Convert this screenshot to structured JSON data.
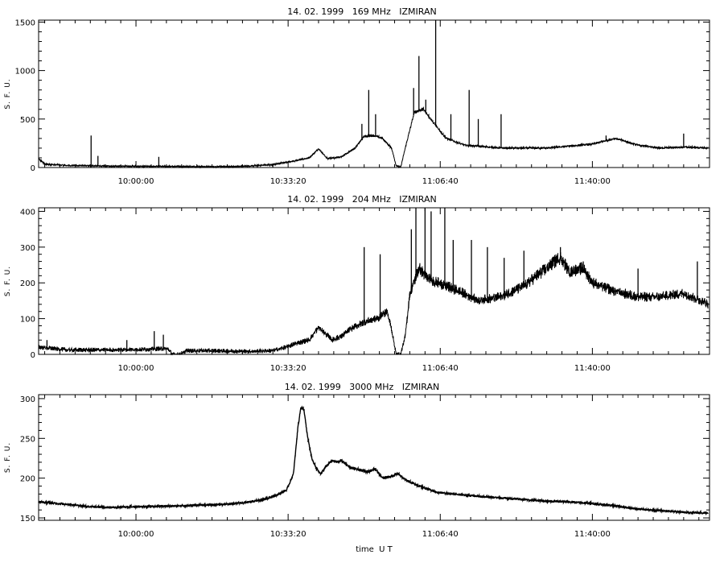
{
  "chart_data": [
    {
      "type": "line",
      "title": "14. 02. 1999   169 MHz   IZMIRAN",
      "ylabel": "S. F. U.",
      "xlabel": "",
      "x_tick_labels": [
        "10:00:00",
        "10:33:20",
        "11:06:40",
        "11:40:00"
      ],
      "x_ticks_seconds": [
        36000,
        38000,
        40000,
        42000
      ],
      "xlim_seconds": [
        34720,
        43540
      ],
      "ylim": [
        0,
        1520
      ],
      "y_tick_labels": [
        "0",
        "500",
        "1000",
        "1500"
      ],
      "y_ticks": [
        0,
        500,
        1000,
        1500
      ],
      "noise": 30,
      "series": [
        {
          "points": [
            [
              "09:38:40",
              90
            ],
            [
              "09:40:00",
              35
            ],
            [
              "09:45:00",
              20
            ],
            [
              "09:50:00",
              18
            ],
            [
              "09:52:00",
              15
            ],
            [
              "10:00:00",
              12
            ],
            [
              "10:10:00",
              10
            ],
            [
              "10:20:00",
              8
            ],
            [
              "10:25:00",
              15
            ],
            [
              "10:30:00",
              30
            ],
            [
              "10:35:00",
              70
            ],
            [
              "10:38:00",
              100
            ],
            [
              "10:40:00",
              190
            ],
            [
              "10:42:00",
              90
            ],
            [
              "10:45:00",
              110
            ],
            [
              "10:48:00",
              200
            ],
            [
              "10:50:00",
              320
            ],
            [
              "10:52:00",
              330
            ],
            [
              "10:54:00",
              300
            ],
            [
              "10:56:00",
              200
            ],
            [
              "10:57:00",
              20
            ],
            [
              "10:58:00",
              0
            ],
            [
              "10:59:00",
              200
            ],
            [
              "11:01:00",
              570
            ],
            [
              "11:03:00",
              600
            ],
            [
              "11:05:00",
              470
            ],
            [
              "11:08:00",
              300
            ],
            [
              "11:12:00",
              230
            ],
            [
              "11:20:00",
              200
            ],
            [
              "11:30:00",
              200
            ],
            [
              "11:40:00",
              240
            ],
            [
              "11:45:00",
              300
            ],
            [
              "11:50:00",
              230
            ],
            [
              "11:55:00",
              200
            ],
            [
              "12:00:00",
              210
            ],
            [
              "12:05:20",
              200
            ]
          ],
          "spikes": [
            [
              "09:50:10",
              330
            ],
            [
              "09:51:40",
              120
            ],
            [
              "10:05:00",
              110
            ],
            [
              "10:49:30",
              450
            ],
            [
              "10:51:00",
              800
            ],
            [
              "10:52:30",
              550
            ],
            [
              "11:00:50",
              820
            ],
            [
              "11:02:00",
              1150
            ],
            [
              "11:03:30",
              700
            ],
            [
              "11:05:40",
              1520
            ],
            [
              "11:09:00",
              550
            ],
            [
              "11:13:00",
              800
            ],
            [
              "11:15:00",
              500
            ],
            [
              "11:20:00",
              550
            ],
            [
              "11:43:00",
              330
            ],
            [
              "12:00:00",
              350
            ]
          ]
        }
      ]
    },
    {
      "type": "line",
      "title": "14. 02. 1999   204 MHz   IZMIRAN",
      "ylabel": "S. F. U.",
      "xlabel": "",
      "x_tick_labels": [
        "10:00:00",
        "10:33:20",
        "11:06:40",
        "11:40:00"
      ],
      "x_ticks_seconds": [
        36000,
        38000,
        40000,
        42000
      ],
      "xlim_seconds": [
        34720,
        43540
      ],
      "ylim": [
        0,
        410
      ],
      "y_tick_labels": [
        "0",
        "100",
        "200",
        "300",
        "400"
      ],
      "y_ticks": [
        0,
        100,
        200,
        300,
        400
      ],
      "noise": 22,
      "series": [
        {
          "points": [
            [
              "09:38:40",
              20
            ],
            [
              "09:45:00",
              12
            ],
            [
              "09:55:00",
              12
            ],
            [
              "10:00:00",
              13
            ],
            [
              "10:05:00",
              15
            ],
            [
              "10:07:00",
              15
            ],
            [
              "10:08:00",
              0
            ],
            [
              "10:10:00",
              0
            ],
            [
              "10:11:00",
              10
            ],
            [
              "10:15:00",
              10
            ],
            [
              "10:25:00",
              8
            ],
            [
              "10:30:00",
              10
            ],
            [
              "10:33:00",
              20
            ],
            [
              "10:35:00",
              30
            ],
            [
              "10:38:00",
              40
            ],
            [
              "10:40:00",
              75
            ],
            [
              "10:43:00",
              40
            ],
            [
              "10:45:00",
              50
            ],
            [
              "10:47:00",
              70
            ],
            [
              "10:50:00",
              90
            ],
            [
              "10:53:00",
              100
            ],
            [
              "10:55:00",
              120
            ],
            [
              "10:56:00",
              70
            ],
            [
              "10:57:00",
              0
            ],
            [
              "10:58:00",
              0
            ],
            [
              "10:59:00",
              50
            ],
            [
              "11:00:00",
              170
            ],
            [
              "11:02:00",
              240
            ],
            [
              "11:04:00",
              210
            ],
            [
              "11:06:00",
              200
            ],
            [
              "11:10:00",
              180
            ],
            [
              "11:15:00",
              150
            ],
            [
              "11:20:00",
              160
            ],
            [
              "11:25:00",
              190
            ],
            [
              "11:30:00",
              240
            ],
            [
              "11:33:00",
              270
            ],
            [
              "11:35:00",
              230
            ],
            [
              "11:38:00",
              240
            ],
            [
              "11:40:00",
              200
            ],
            [
              "11:45:00",
              175
            ],
            [
              "11:50:00",
              160
            ],
            [
              "11:55:00",
              160
            ],
            [
              "12:00:00",
              170
            ],
            [
              "12:05:20",
              140
            ]
          ],
          "spikes": [
            [
              "09:40:30",
              40
            ],
            [
              "09:58:00",
              40
            ],
            [
              "10:04:00",
              65
            ],
            [
              "10:06:00",
              55
            ],
            [
              "10:50:00",
              300
            ],
            [
              "10:53:30",
              280
            ],
            [
              "11:00:20",
              350
            ],
            [
              "11:01:20",
              410
            ],
            [
              "11:03:20",
              410
            ],
            [
              "11:04:40",
              400
            ],
            [
              "11:07:40",
              410
            ],
            [
              "11:09:30",
              320
            ],
            [
              "11:13:30",
              320
            ],
            [
              "11:17:00",
              300
            ],
            [
              "11:20:40",
              270
            ],
            [
              "11:25:00",
              290
            ],
            [
              "11:33:00",
              300
            ],
            [
              "11:38:00",
              260
            ],
            [
              "11:50:00",
              240
            ],
            [
              "12:03:00",
              260
            ]
          ]
        }
      ]
    },
    {
      "type": "line",
      "title": "14. 02. 1999   3000 MHz   IZMIRAN",
      "ylabel": "S. F. U.",
      "xlabel": "time  U T",
      "x_tick_labels": [
        "10:00:00",
        "10:33:20",
        "11:06:40",
        "11:40:00"
      ],
      "x_ticks_seconds": [
        36000,
        38000,
        40000,
        42000
      ],
      "xlim_seconds": [
        34720,
        43540
      ],
      "ylim": [
        147,
        305
      ],
      "y_tick_labels": [
        "150",
        "200",
        "250",
        "300"
      ],
      "y_ticks": [
        150,
        200,
        250,
        300
      ],
      "noise": 1.2,
      "series": [
        {
          "points": [
            [
              "09:38:40",
              170
            ],
            [
              "09:45:00",
              167
            ],
            [
              "09:50:00",
              164
            ],
            [
              "09:55:00",
              163
            ],
            [
              "10:00:00",
              164
            ],
            [
              "10:10:00",
              165
            ],
            [
              "10:20:00",
              167
            ],
            [
              "10:25:00",
              170
            ],
            [
              "10:28:00",
              173
            ],
            [
              "10:31:00",
              179
            ],
            [
              "10:33:00",
              185
            ],
            [
              "10:34:30",
              205
            ],
            [
              "10:35:30",
              265
            ],
            [
              "10:36:10",
              290
            ],
            [
              "10:36:50",
              285
            ],
            [
              "10:37:30",
              255
            ],
            [
              "10:38:30",
              225
            ],
            [
              "10:39:30",
              212
            ],
            [
              "10:40:30",
              205
            ],
            [
              "10:41:40",
              215
            ],
            [
              "10:43:00",
              222
            ],
            [
              "10:44:00",
              220
            ],
            [
              "10:45:00",
              222
            ],
            [
              "10:47:00",
              213
            ],
            [
              "10:49:00",
              210
            ],
            [
              "10:51:00",
              208
            ],
            [
              "10:52:20",
              212
            ],
            [
              "10:54:00",
              200
            ],
            [
              "10:56:00",
              202
            ],
            [
              "10:57:20",
              206
            ],
            [
              "10:59:00",
              198
            ],
            [
              "11:02:00",
              190
            ],
            [
              "11:06:00",
              182
            ],
            [
              "11:15:00",
              177
            ],
            [
              "11:25:00",
              173
            ],
            [
              "11:30:00",
              171
            ],
            [
              "11:35:00",
              170
            ],
            [
              "11:40:00",
              168
            ],
            [
              "11:45:00",
              165
            ],
            [
              "11:50:00",
              161
            ],
            [
              "11:55:00",
              159
            ],
            [
              "12:00:00",
              157
            ],
            [
              "12:05:20",
              156
            ]
          ],
          "spikes": []
        }
      ]
    }
  ]
}
